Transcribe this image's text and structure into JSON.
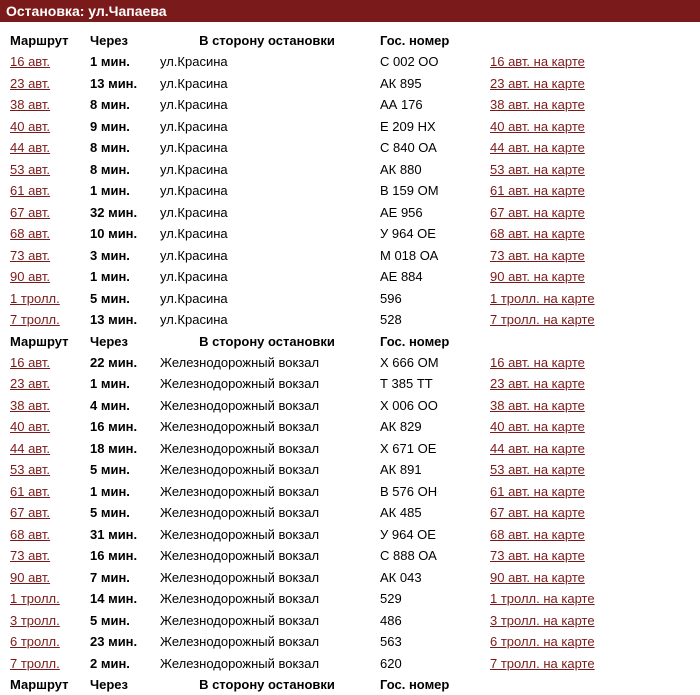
{
  "colors": {
    "header_bg": "#7b1a1a",
    "header_text": "#ffffff",
    "link": "#7b1a1a",
    "text": "#000000",
    "bg": "#ffffff"
  },
  "title": "Остановка: ул.Чапаева",
  "headers": {
    "route": "Маршрут",
    "time": "Через",
    "dest": "В сторону остановки",
    "gos": "Гос. номер",
    "map_suffix": " на карте"
  },
  "section1": {
    "rows": [
      {
        "route": "16 авт.",
        "time": "1 мин.",
        "dest": "ул.Красина",
        "gos": "С 002 ОО",
        "map": "16 авт. на карте"
      },
      {
        "route": "23 авт.",
        "time": "13 мин.",
        "dest": "ул.Красина",
        "gos": "АК 895",
        "map": "23 авт. на карте"
      },
      {
        "route": "38 авт.",
        "time": "8 мин.",
        "dest": "ул.Красина",
        "gos": "АА 176",
        "map": "38 авт. на карте"
      },
      {
        "route": "40 авт.",
        "time": "9 мин.",
        "dest": "ул.Красина",
        "gos": "Е 209 НХ",
        "map": "40 авт. на карте"
      },
      {
        "route": "44 авт.",
        "time": "8 мин.",
        "dest": "ул.Красина",
        "gos": "С 840 ОА",
        "map": "44 авт. на карте"
      },
      {
        "route": "53 авт.",
        "time": "8 мин.",
        "dest": "ул.Красина",
        "gos": "АК 880",
        "map": "53 авт. на карте"
      },
      {
        "route": "61 авт.",
        "time": "1 мин.",
        "dest": "ул.Красина",
        "gos": "В 159 ОМ",
        "map": "61 авт. на карте"
      },
      {
        "route": "67 авт.",
        "time": "32 мин.",
        "dest": "ул.Красина",
        "gos": "АЕ 956",
        "map": "67 авт. на карте"
      },
      {
        "route": "68 авт.",
        "time": "10 мин.",
        "dest": "ул.Красина",
        "gos": "У 964 ОЕ",
        "map": "68 авт. на карте"
      },
      {
        "route": "73 авт.",
        "time": "3 мин.",
        "dest": "ул.Красина",
        "gos": "М 018 ОА",
        "map": "73 авт. на карте"
      },
      {
        "route": "90 авт.",
        "time": "1 мин.",
        "dest": "ул.Красина",
        "gos": "АЕ 884",
        "map": "90 авт. на карте"
      },
      {
        "route": "1 тролл.",
        "time": "5 мин.",
        "dest": "ул.Красина",
        "gos": "596",
        "map": "1 тролл. на карте"
      },
      {
        "route": "7 тролл.",
        "time": "13 мин.",
        "dest": "ул.Красина",
        "gos": "528",
        "map": "7 тролл. на карте"
      }
    ]
  },
  "section2": {
    "rows": [
      {
        "route": "16 авт.",
        "time": "22 мин.",
        "dest": "Железнодорожный вокзал",
        "gos": "Х 666 ОМ",
        "map": "16 авт. на карте"
      },
      {
        "route": "23 авт.",
        "time": "1 мин.",
        "dest": "Железнодорожный вокзал",
        "gos": "Т 385 ТТ",
        "map": "23 авт. на карте"
      },
      {
        "route": "38 авт.",
        "time": "4 мин.",
        "dest": "Железнодорожный вокзал",
        "gos": "Х 006 ОО",
        "map": "38 авт. на карте"
      },
      {
        "route": "40 авт.",
        "time": "16 мин.",
        "dest": "Железнодорожный вокзал",
        "gos": "АК 829",
        "map": "40 авт. на карте"
      },
      {
        "route": "44 авт.",
        "time": "18 мин.",
        "dest": "Железнодорожный вокзал",
        "gos": "Х 671 ОЕ",
        "map": "44 авт. на карте"
      },
      {
        "route": "53 авт.",
        "time": "5 мин.",
        "dest": "Железнодорожный вокзал",
        "gos": "АК 891",
        "map": "53 авт. на карте"
      },
      {
        "route": "61 авт.",
        "time": "1 мин.",
        "dest": "Железнодорожный вокзал",
        "gos": "В 576 ОН",
        "map": "61 авт. на карте"
      },
      {
        "route": "67 авт.",
        "time": "5 мин.",
        "dest": "Железнодорожный вокзал",
        "gos": "АК 485",
        "map": "67 авт. на карте"
      },
      {
        "route": "68 авт.",
        "time": "31 мин.",
        "dest": "Железнодорожный вокзал",
        "gos": "У 964 ОЕ",
        "map": "68 авт. на карте"
      },
      {
        "route": "73 авт.",
        "time": "16 мин.",
        "dest": "Железнодорожный вокзал",
        "gos": "С 888 ОА",
        "map": "73 авт. на карте"
      },
      {
        "route": "90 авт.",
        "time": "7 мин.",
        "dest": "Железнодорожный вокзал",
        "gos": "АК 043",
        "map": "90 авт. на карте"
      },
      {
        "route": "1 тролл.",
        "time": "14 мин.",
        "dest": "Железнодорожный вокзал",
        "gos": "529",
        "map": "1 тролл. на карте"
      },
      {
        "route": "3 тролл.",
        "time": "5 мин.",
        "dest": "Железнодорожный вокзал",
        "gos": "486",
        "map": "3 тролл. на карте"
      },
      {
        "route": "6 тролл.",
        "time": "23 мин.",
        "dest": "Железнодорожный вокзал",
        "gos": "563",
        "map": "6 тролл. на карте"
      },
      {
        "route": "7 тролл.",
        "time": "2 мин.",
        "dest": "Железнодорожный вокзал",
        "gos": "620",
        "map": "7 тролл. на карте"
      }
    ]
  }
}
